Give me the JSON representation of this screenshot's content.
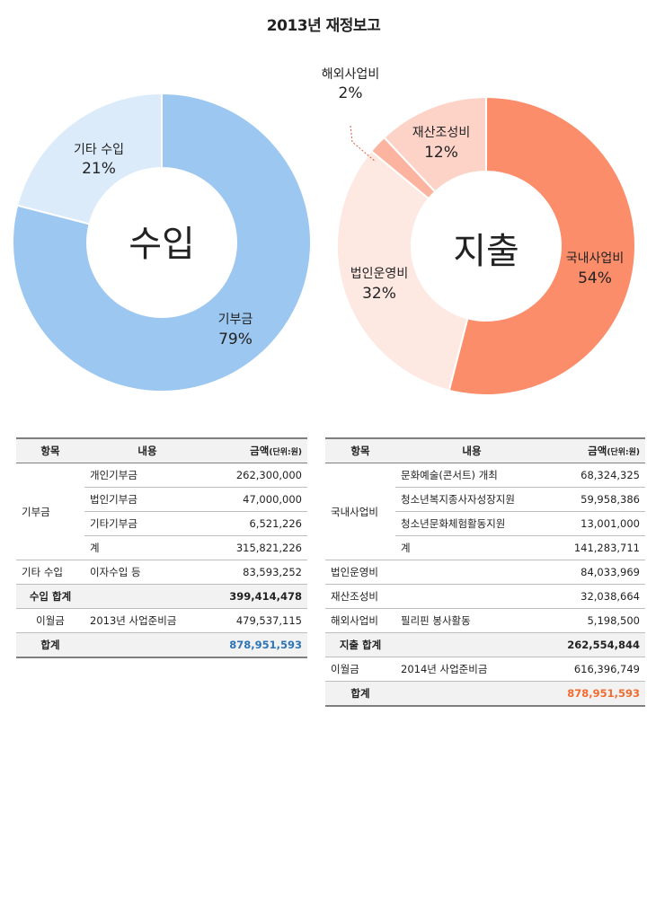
{
  "title": "2013년 재정보고",
  "chart_data": [
    {
      "type": "pie",
      "variant": "donut",
      "center_label": "수입",
      "slices": [
        {
          "label": "기부금",
          "value": 79,
          "pct_label": "79%",
          "color": "#9bc7f1"
        },
        {
          "label": "기타 수입",
          "value": 21,
          "pct_label": "21%",
          "color": "#dcebfa"
        }
      ]
    },
    {
      "type": "pie",
      "variant": "donut",
      "center_label": "지출",
      "slices": [
        {
          "label": "국내사업비",
          "value": 54,
          "pct_label": "54%",
          "color": "#fc8d6a"
        },
        {
          "label": "법인운영비",
          "value": 32,
          "pct_label": "32%",
          "color": "#fde8e2"
        },
        {
          "label": "해외사업비",
          "value": 2,
          "pct_label": "2%",
          "color": "#fcb3a0"
        },
        {
          "label": "재산조성비",
          "value": 12,
          "pct_label": "12%",
          "color": "#fdd3c8"
        }
      ]
    }
  ],
  "income_table": {
    "headers": {
      "item": "항목",
      "content": "내용",
      "amount": "금액",
      "unit": "(단위:원)"
    },
    "rows": {
      "g1": {
        "item": "기부금"
      },
      "r1": {
        "content": "개인기부금",
        "amount": "262,300,000"
      },
      "r2": {
        "content": "법인기부금",
        "amount": "47,000,000"
      },
      "r3": {
        "content": "기타기부금",
        "amount": "6,521,226"
      },
      "r4": {
        "content": "계",
        "amount": "315,821,226"
      },
      "r5": {
        "item": "기타 수입",
        "content": "이자수입 등",
        "amount": "83,593,252"
      },
      "r6": {
        "item": "수입 합계",
        "amount": "399,414,478"
      },
      "r7": {
        "item": "이월금",
        "content": "2013년 사업준비금",
        "amount": "479,537,115"
      },
      "r8": {
        "item": "합계",
        "amount": "878,951,593"
      }
    }
  },
  "expense_table": {
    "headers": {
      "item": "항목",
      "content": "내용",
      "amount": "금액",
      "unit": "(단위:원)"
    },
    "rows": {
      "g1": {
        "item": "국내사업비"
      },
      "r1": {
        "content": "문화예술(콘서트) 개최",
        "amount": "68,324,325"
      },
      "r2": {
        "content": "청소년복지종사자성장지원",
        "amount": "59,958,386"
      },
      "r3": {
        "content": "청소년문화체험활동지원",
        "amount": "13,001,000"
      },
      "r4": {
        "content": "계",
        "amount": "141,283,711"
      },
      "r5": {
        "item": "법인운영비",
        "content": "",
        "amount": "84,033,969"
      },
      "r6": {
        "item": "재산조성비",
        "content": "",
        "amount": "32,038,664"
      },
      "r7": {
        "item": "해외사업비",
        "content": "필리핀 봉사활동",
        "amount": "5,198,500"
      },
      "r8": {
        "item": "지출 합계",
        "amount": "262,554,844"
      },
      "r9": {
        "item": "이월금",
        "content": "2014년 사업준비금",
        "amount": "616,396,749"
      },
      "r10": {
        "item": "합계",
        "amount": "878,951,593"
      }
    }
  }
}
